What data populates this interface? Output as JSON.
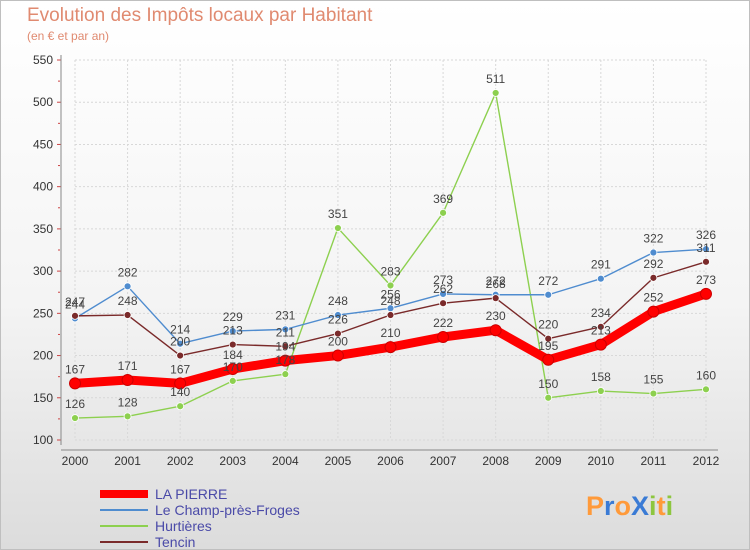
{
  "title": "Evolution des Impôts locaux par Habitant",
  "subtitle": "(en € et par an)",
  "logo_text": "ProXiti",
  "chart_data": {
    "type": "line",
    "title": "Evolution des Impôts locaux par Habitant",
    "subtitle": "(en € et par an)",
    "xlabel": "",
    "ylabel": "",
    "ylim": [
      100,
      550
    ],
    "yticks": [
      "100",
      "150",
      "200",
      "250",
      "300",
      "350",
      "400",
      "450",
      "500",
      "550"
    ],
    "categories": [
      "2000",
      "2001",
      "2002",
      "2003",
      "2004",
      "2005",
      "2006",
      "2007",
      "2008",
      "2009",
      "2010",
      "2011",
      "2012"
    ],
    "legend_position": "bottom-left",
    "series": [
      {
        "name": "LA PIERRE",
        "color": "#ff0000",
        "values": [
          167,
          171,
          167,
          184,
          194,
          200,
          210,
          222,
          230,
          195,
          213,
          252,
          273
        ]
      },
      {
        "name": "Le Champ-près-Froges",
        "color": "#4f8ccf",
        "values": [
          244,
          282,
          214,
          229,
          231,
          248,
          256,
          273,
          272,
          272,
          291,
          322,
          326
        ]
      },
      {
        "name": "Hurtières",
        "color": "#8dd04f",
        "values": [
          126,
          128,
          140,
          170,
          178,
          351,
          283,
          369,
          511,
          150,
          158,
          155,
          160
        ]
      },
      {
        "name": "Tencin",
        "color": "#7a2a2a",
        "values": [
          247,
          248,
          200,
          213,
          211,
          226,
          248,
          262,
          268,
          220,
          234,
          292,
          311
        ]
      }
    ]
  }
}
